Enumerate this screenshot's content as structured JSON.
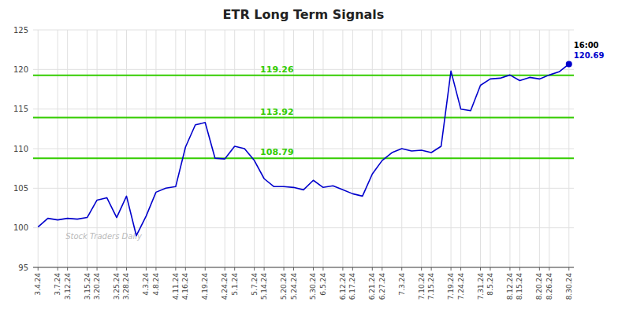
{
  "chart_data": {
    "type": "line",
    "title": "ETR Long Term Signals",
    "categories": [
      "3.4.24",
      null,
      "3.7.24",
      "3.12.24",
      null,
      "3.15.24",
      "3.20.24",
      null,
      "3.25.24",
      "3.28.24",
      null,
      "4.3.24",
      "4.8.24",
      null,
      "4.11.24",
      "4.16.24",
      null,
      "4.19.24",
      null,
      "4.24.24",
      "5.1.24",
      null,
      "5.7.24",
      "5.14.24",
      null,
      "5.20.24",
      "5.24.24",
      null,
      "5.30.24",
      "6.5.24",
      null,
      "6.12.24",
      "6.17.24",
      null,
      "6.21.24",
      "6.27.24",
      null,
      "7.3.24",
      null,
      "7.10.24",
      "7.15.24",
      null,
      "7.19.24",
      "7.24.24",
      null,
      "7.31.24",
      "8.5.24",
      null,
      "8.12.24",
      "8.15.24",
      null,
      "8.20.24",
      "8.26.24",
      null,
      "8.30.24"
    ],
    "values": [
      100.1,
      101.2,
      101.0,
      101.2,
      101.1,
      101.3,
      103.5,
      103.8,
      101.3,
      104.0,
      99.0,
      101.5,
      104.5,
      105.0,
      105.2,
      110.2,
      113.0,
      113.3,
      108.8,
      108.7,
      110.3,
      110.0,
      108.5,
      106.2,
      105.2,
      105.2,
      105.1,
      104.8,
      106.0,
      105.1,
      105.3,
      104.8,
      104.3,
      104.0,
      106.8,
      108.5,
      109.5,
      110.0,
      109.7,
      109.8,
      109.5,
      110.3,
      119.8,
      115.0,
      114.8,
      118.0,
      118.8,
      118.9,
      119.3,
      118.6,
      119.0,
      118.8,
      119.3,
      119.7,
      120.69
    ],
    "color": "#0000cc",
    "ylim": [
      95,
      125
    ],
    "yticks": [
      95,
      100,
      105,
      110,
      115,
      120,
      125
    ],
    "grid": true,
    "hlines": [
      {
        "value": 119.26,
        "label": "119.26",
        "color": "#33cc00"
      },
      {
        "value": 113.92,
        "label": "113.92",
        "color": "#33cc00"
      },
      {
        "value": 108.79,
        "label": "108.79",
        "color": "#33cc00"
      }
    ],
    "annotations": [
      {
        "text": "16:00",
        "color": "#000000"
      },
      {
        "text": "120.69",
        "color": "#0000cc"
      }
    ],
    "watermark": "Stock Traders Daily"
  }
}
